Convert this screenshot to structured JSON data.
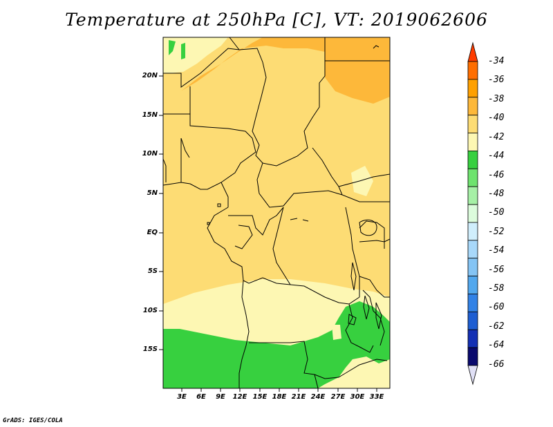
{
  "title": "Temperature at 250hPa [C], VT: 2019062606",
  "footer": "GrADS: IGES/COLA",
  "lat_labels": [
    "20N",
    "15N",
    "10N",
    "5N",
    "EQ",
    "5S",
    "10S",
    "15S"
  ],
  "lon_labels": [
    "3E",
    "6E",
    "9E",
    "12E",
    "15E",
    "18E",
    "21E",
    "24E",
    "27E",
    "30E",
    "33E"
  ],
  "colorbar": {
    "labels": [
      "-34",
      "-36",
      "-38",
      "-40",
      "-42",
      "-44",
      "-46",
      "-48",
      "-50",
      "-52",
      "-54",
      "-56",
      "-58",
      "-60",
      "-62",
      "-64",
      "-66"
    ],
    "colors": [
      "#ff3c00",
      "#ff6e00",
      "#ffa000",
      "#fdb83a",
      "#fddc74",
      "#fdf7b3",
      "#37d03f",
      "#6ee36e",
      "#a6f0a6",
      "#dcfcdc",
      "#d0eefc",
      "#a8d8fa",
      "#84c4f4",
      "#52a8ee",
      "#3282e6",
      "#1e5ed2",
      "#1430b4",
      "#0a0a6e",
      "#e0e0f6"
    ]
  },
  "map_colors": {
    "band_m38": "#fdb83a",
    "band_m40": "#fddc74",
    "band_m42": "#fdf7b3",
    "band_m44": "#37d03f"
  }
}
